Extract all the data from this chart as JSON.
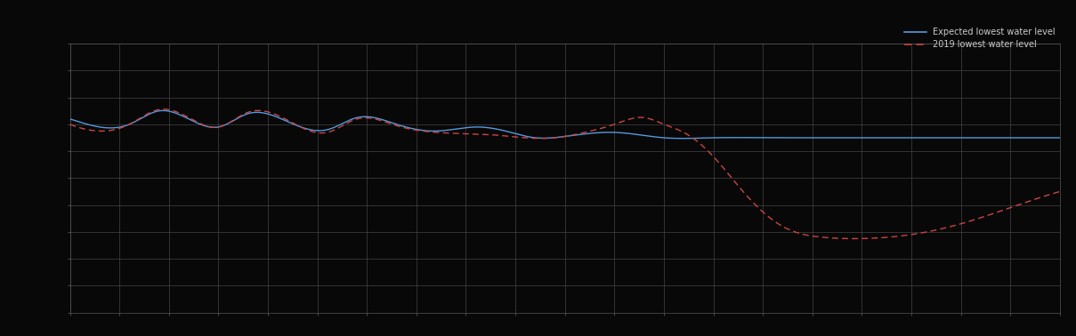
{
  "background_color": "#080808",
  "plot_bg_color": "#080808",
  "grid_color": "#444444",
  "blue_color": "#5599dd",
  "red_color": "#cc4444",
  "legend_label_blue": "Expected lowest water level",
  "legend_label_red": "2019 lowest water level",
  "figsize": [
    12.09,
    3.78
  ],
  "dpi": 100,
  "blue_x": [
    0,
    3,
    6,
    9,
    12,
    15,
    18,
    22,
    26,
    29,
    33,
    37,
    41,
    44,
    47,
    50,
    55,
    60,
    65,
    70,
    75,
    80,
    85,
    90,
    95,
    100
  ],
  "blue_y": [
    7.2,
    6.9,
    7.0,
    7.5,
    7.2,
    6.9,
    7.4,
    7.1,
    6.8,
    7.25,
    7.0,
    6.75,
    6.9,
    6.75,
    6.5,
    6.55,
    6.7,
    6.5,
    6.5,
    6.5,
    6.5,
    6.5,
    6.5,
    6.5,
    6.5,
    6.5
  ],
  "red_x": [
    0,
    3,
    6,
    9,
    12,
    15,
    18,
    22,
    26,
    29,
    33,
    37,
    40,
    43,
    46,
    49,
    52,
    55,
    58,
    60,
    62,
    65,
    68,
    72,
    76,
    80,
    85,
    90,
    95,
    100
  ],
  "red_y": [
    7.0,
    6.75,
    7.0,
    7.55,
    7.25,
    6.9,
    7.45,
    7.15,
    6.7,
    7.2,
    6.95,
    6.7,
    6.65,
    6.6,
    6.5,
    6.5,
    6.7,
    7.0,
    7.25,
    7.0,
    6.7,
    5.8,
    4.5,
    3.2,
    2.8,
    2.75,
    2.9,
    3.3,
    3.9,
    4.5
  ],
  "xlim": [
    0,
    100
  ],
  "ylim": [
    0,
    10
  ],
  "grid_x_spacing": 5,
  "grid_y_spacing": 1
}
